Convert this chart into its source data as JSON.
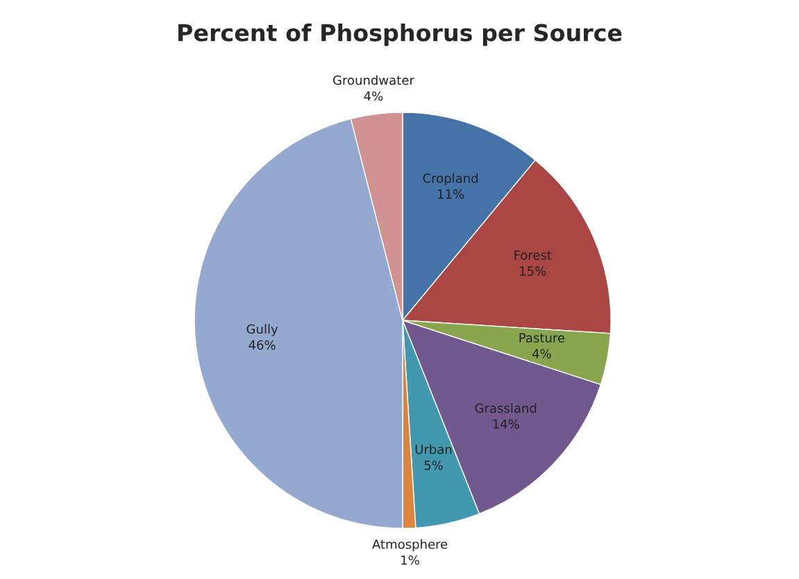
{
  "chart_data": {
    "type": "pie",
    "title": "Percent of Phosphorus per Source",
    "categories": [
      "Cropland",
      "Forest",
      "Pasture",
      "Grassland",
      "Urban",
      "Atmosphere",
      "Gully",
      "Groundwater"
    ],
    "values": [
      11,
      15,
      4,
      14,
      5,
      1,
      46,
      4
    ],
    "colors": [
      "#4572a7",
      "#aa4643",
      "#89a54e",
      "#71588f",
      "#4198af",
      "#db843d",
      "#93a9cf",
      "#d19392"
    ],
    "value_labels": [
      "11%",
      "15%",
      "4%",
      "14%",
      "5%",
      "1%",
      "46%",
      "4%"
    ],
    "legend": false
  }
}
